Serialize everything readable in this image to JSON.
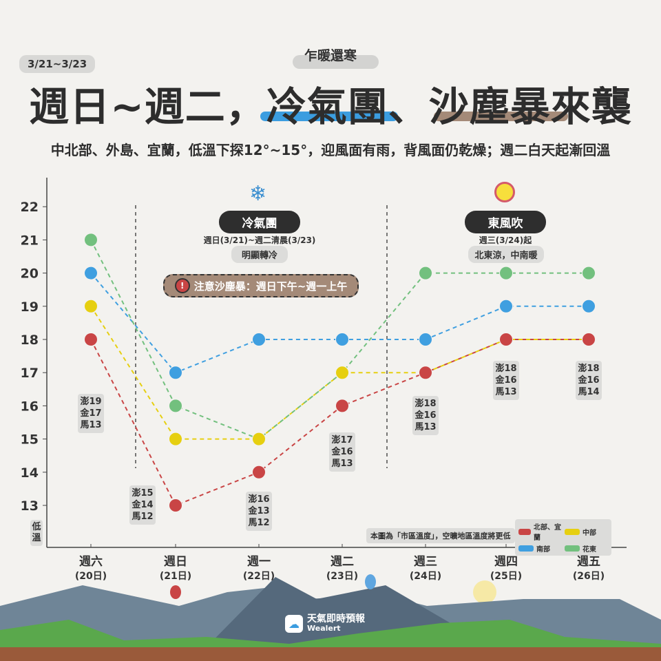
{
  "header": {
    "date_range": "3/21~3/23",
    "kicker": "乍暖還寒",
    "title": "週日~週二，冷氣團、沙塵暴來襲",
    "subtitle": "中北部、外島、宜蘭，低溫下探12°~15°，迎風面有雨，背風面仍乾燥；週二白天起漸回溫"
  },
  "annotations": {
    "cold": {
      "icon": "snowflake-icon",
      "label": "冷氣團",
      "period": "週日(3/21)~週二清晨(3/23)",
      "note": "明顯轉冷"
    },
    "east": {
      "icon": "sun-icon",
      "label": "東風吹",
      "period": "週三(3/24)起",
      "note": "北東涼，中南暖"
    },
    "dust_alert": "注意沙塵暴：週日下午~週一上午",
    "footnote": "本圖為「市區溫度」，空曠地區溫度將更低"
  },
  "brand": {
    "name": "天氣即時預報",
    "sub": "Wealert"
  },
  "chart_data": {
    "type": "line",
    "ylabel": "低溫",
    "ylim": [
      13,
      22
    ],
    "yticks": [
      13,
      14,
      15,
      16,
      17,
      18,
      19,
      20,
      21,
      22
    ],
    "categories": [
      {
        "day": "週六",
        "date": "(20日)"
      },
      {
        "day": "週日",
        "date": "(21日)"
      },
      {
        "day": "週一",
        "date": "(22日)"
      },
      {
        "day": "週二",
        "date": "(23日)"
      },
      {
        "day": "週三",
        "date": "(24日)"
      },
      {
        "day": "週四",
        "date": "(25日)"
      },
      {
        "day": "週五",
        "date": "(26日)"
      }
    ],
    "series": [
      {
        "name": "北部、宜蘭",
        "color": "#c94545",
        "values": [
          18,
          13,
          14,
          16,
          17,
          18,
          18
        ]
      },
      {
        "name": "中部",
        "color": "#e6cf10",
        "values": [
          19,
          15,
          15,
          17,
          17,
          18,
          18
        ]
      },
      {
        "name": "南部",
        "color": "#3f9fe0",
        "values": [
          20,
          17,
          18,
          18,
          18,
          19,
          19
        ]
      },
      {
        "name": "花東",
        "color": "#72c07e",
        "values": [
          21,
          16,
          15,
          17,
          20,
          20,
          20
        ]
      }
    ],
    "islands": [
      [
        "澎19",
        "金17",
        "馬13"
      ],
      [
        "澎15",
        "金14",
        "馬12"
      ],
      [
        "澎16",
        "金13",
        "馬12"
      ],
      [
        "澎17",
        "金16",
        "馬13"
      ],
      [
        "澎18",
        "金16",
        "馬13"
      ],
      [
        "澎18",
        "金16",
        "馬13"
      ],
      [
        "澎18",
        "金16",
        "馬14"
      ]
    ],
    "legend_position": "bottom-right"
  }
}
